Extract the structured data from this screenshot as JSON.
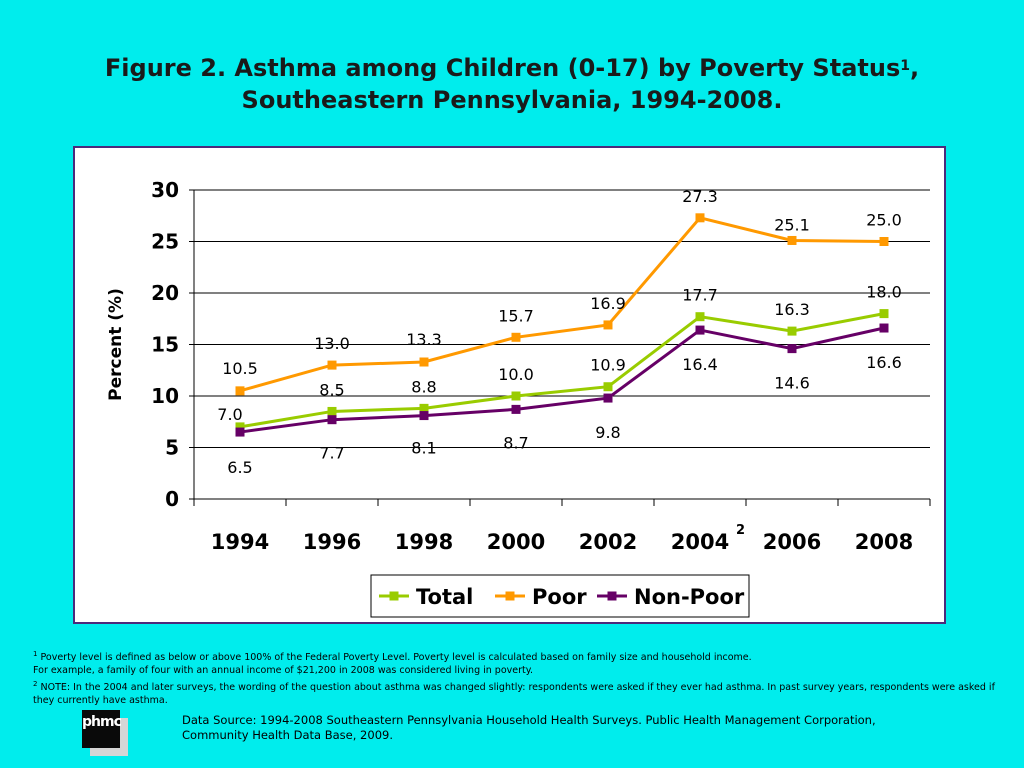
{
  "title": {
    "line1": "Figure 2. Asthma among Children (0-17) by Poverty Status",
    "line1_sup": "1",
    "line1_end": ",",
    "line2": "Southeastern Pennsylvania, 1994-2008."
  },
  "chart_data": {
    "type": "line",
    "categories": [
      "1994",
      "1996",
      "1998",
      "2000",
      "2002",
      "2004",
      "2006",
      "2008"
    ],
    "category_footnote": {
      "category": "2004",
      "mark": "2"
    },
    "ylabel": "Percent (%)",
    "ylim": [
      0,
      30
    ],
    "yticks": [
      "0",
      "5",
      "10",
      "15",
      "20",
      "25",
      "30"
    ],
    "grid": true,
    "legend": "bottom",
    "series": [
      {
        "name": "Total",
        "color": "#99CC00",
        "values": [
          7.0,
          8.5,
          8.8,
          10.0,
          10.9,
          17.7,
          16.3,
          18.0
        ],
        "labels": [
          "7.0",
          "8.5",
          "8.8",
          "10.0",
          "10.9",
          "17.7",
          "16.3",
          "18.0"
        ]
      },
      {
        "name": "Poor",
        "color": "#FF9900",
        "values": [
          10.5,
          13.0,
          13.3,
          15.7,
          16.9,
          27.3,
          25.1,
          25.0
        ],
        "labels": [
          "10.5",
          "13.0",
          "13.3",
          "15.7",
          "16.9",
          "27.3",
          "25.1",
          "25.0"
        ]
      },
      {
        "name": "Non-Poor",
        "color": "#660066",
        "values": [
          6.5,
          7.7,
          8.1,
          8.7,
          9.8,
          16.4,
          14.6,
          16.6
        ],
        "labels": [
          "6.5",
          "7.7",
          "8.1",
          "8.7",
          "9.8",
          "16.4",
          "14.6",
          "16.6"
        ]
      }
    ]
  },
  "notes": {
    "n1_mark": "1",
    "n1_line1": " Poverty level is defined as below or above 100% of the Federal Poverty Level. Poverty level is calculated based on family size and household income.",
    "n1_line2": "For example, a family of four with an annual income of $21,200 in 2008 was considered living in poverty.",
    "n2_mark": "2",
    "n2_text": " NOTE: In the 2004 and later surveys, the wording of the question about asthma was changed slightly: respondents were asked if they ever had asthma. In past survey years, respondents were asked if they currently have asthma."
  },
  "logo": {
    "text": "phmc"
  },
  "source": "Data Source: 1994-2008 Southeastern Pennsylvania Household Health Surveys. Public Health Management Corporation, Community Health Data Base, 2009."
}
